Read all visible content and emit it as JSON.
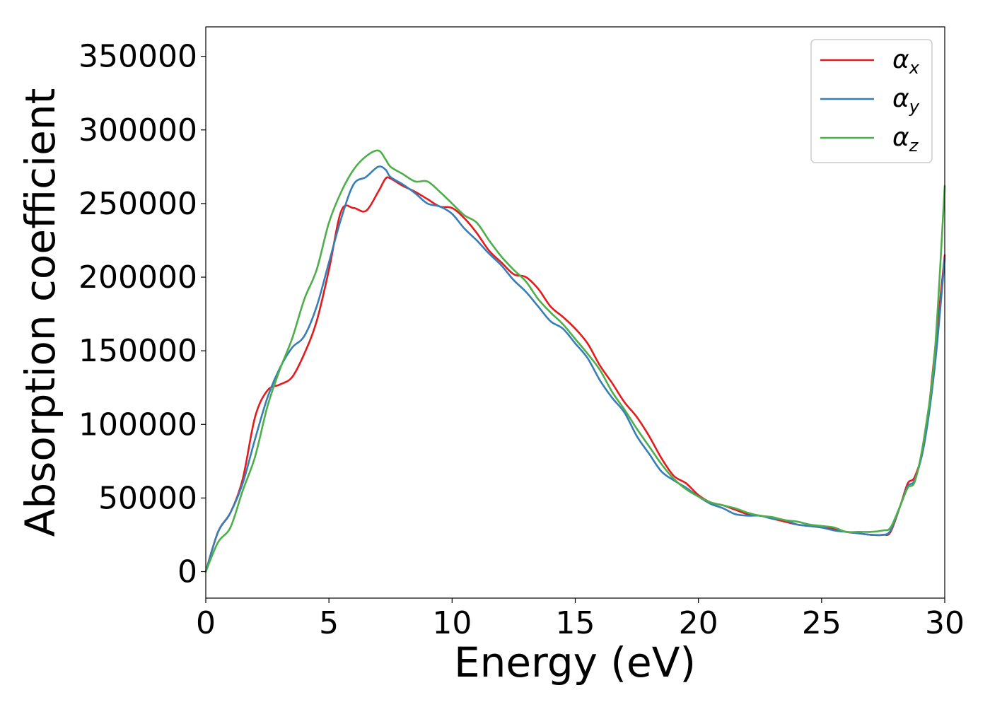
{
  "chart_data": {
    "type": "line",
    "title": "",
    "xlabel": "Energy (eV)",
    "ylabel": "Absorption coefficient",
    "xlim": [
      0,
      30
    ],
    "ylim": [
      -18000,
      370000
    ],
    "xticks": [
      0,
      5,
      10,
      15,
      20,
      25,
      30
    ],
    "yticks": [
      0,
      50000,
      100000,
      150000,
      200000,
      250000,
      300000,
      350000
    ],
    "grid": false,
    "legend_position": "top-right",
    "series": [
      {
        "name": "α_x",
        "symbol": "α",
        "subscript": "x",
        "color": "#e41a1c",
        "x": [
          0,
          0.5,
          1,
          1.5,
          2,
          2.5,
          3,
          3.5,
          4,
          4.5,
          5,
          5.5,
          6,
          6.5,
          7,
          7.3,
          7.5,
          8,
          8.5,
          9,
          9.5,
          10,
          10.5,
          11,
          11.5,
          12,
          12.5,
          13,
          13.5,
          14,
          14.5,
          15,
          15.5,
          16,
          16.5,
          17,
          17.5,
          18,
          18.5,
          19,
          19.5,
          20,
          20.5,
          21,
          21.5,
          22,
          22.5,
          23,
          23.5,
          24,
          24.5,
          25,
          25.5,
          26,
          26.5,
          27,
          27.5,
          27.8,
          28.2,
          28.5,
          28.8,
          29.2,
          29.6,
          30
        ],
        "y": [
          0,
          27000,
          40000,
          63000,
          105000,
          123000,
          127000,
          132000,
          148000,
          170000,
          205000,
          245000,
          247000,
          245000,
          258000,
          267000,
          267000,
          262000,
          258000,
          253000,
          248000,
          247000,
          240000,
          230000,
          218000,
          210000,
          202000,
          200000,
          192000,
          180000,
          173000,
          165000,
          155000,
          140000,
          128000,
          115000,
          105000,
          92000,
          77000,
          65000,
          60000,
          52000,
          47000,
          45000,
          42000,
          39000,
          38000,
          36000,
          34000,
          32000,
          31000,
          30000,
          29000,
          27000,
          26000,
          25000,
          25000,
          27000,
          45000,
          60000,
          65000,
          90000,
          150000,
          215000
        ]
      },
      {
        "name": "α_y",
        "symbol": "α",
        "subscript": "y",
        "color": "#377eb8",
        "x": [
          0,
          0.5,
          1,
          1.5,
          2,
          2.5,
          3,
          3.5,
          4,
          4.5,
          5,
          5.5,
          6,
          6.5,
          7,
          7.3,
          7.5,
          8,
          8.5,
          9,
          9.5,
          10,
          10.5,
          11,
          11.5,
          12,
          12.5,
          13,
          13.5,
          14,
          14.5,
          15,
          15.5,
          16,
          16.5,
          17,
          17.5,
          18,
          18.5,
          19,
          19.5,
          20,
          20.5,
          21,
          21.5,
          22,
          22.5,
          23,
          23.5,
          24,
          24.5,
          25,
          25.5,
          26,
          26.5,
          27,
          27.5,
          27.8,
          28.2,
          28.5,
          28.8,
          29.2,
          29.6,
          30
        ],
        "y": [
          0,
          27000,
          40000,
          60000,
          90000,
          118000,
          138000,
          152000,
          160000,
          180000,
          210000,
          240000,
          263000,
          268000,
          275000,
          273000,
          268000,
          263000,
          257000,
          250000,
          248000,
          243000,
          233000,
          225000,
          216000,
          208000,
          198000,
          190000,
          180000,
          170000,
          165000,
          155000,
          145000,
          130000,
          118000,
          108000,
          92000,
          80000,
          68000,
          62000,
          57000,
          51000,
          46000,
          43000,
          39000,
          38000,
          38000,
          36000,
          35000,
          32000,
          31000,
          30000,
          28000,
          27000,
          26000,
          25000,
          25000,
          28000,
          45000,
          58000,
          63000,
          90000,
          140000,
          213000
        ]
      },
      {
        "name": "α_z",
        "symbol": "α",
        "subscript": "z",
        "color": "#4daf4a",
        "x": [
          0,
          0.5,
          1,
          1.5,
          2,
          2.5,
          3,
          3.5,
          4,
          4.5,
          5,
          5.5,
          6,
          6.5,
          7,
          7.3,
          7.5,
          8,
          8.5,
          9,
          9.5,
          10,
          10.5,
          11,
          11.5,
          12,
          12.5,
          13,
          13.5,
          14,
          14.5,
          15,
          15.5,
          16,
          16.5,
          17,
          17.5,
          18,
          18.5,
          19,
          19.5,
          20,
          20.5,
          21,
          21.5,
          22,
          22.5,
          23,
          23.5,
          24,
          24.5,
          25,
          25.5,
          26,
          26.5,
          27,
          27.5,
          27.8,
          28.2,
          28.5,
          28.8,
          29.2,
          29.6,
          30
        ],
        "y": [
          0,
          20000,
          30000,
          55000,
          78000,
          112000,
          137000,
          158000,
          185000,
          205000,
          237000,
          258000,
          273000,
          282000,
          286000,
          280000,
          275000,
          270000,
          265000,
          265000,
          258000,
          250000,
          242000,
          237000,
          225000,
          214000,
          205000,
          197000,
          185000,
          176000,
          168000,
          158000,
          148000,
          137000,
          122000,
          110000,
          97000,
          85000,
          73000,
          63000,
          56000,
          51000,
          47000,
          45000,
          43000,
          40000,
          38000,
          37000,
          35000,
          34000,
          32000,
          31000,
          30000,
          27000,
          27000,
          27000,
          28000,
          30000,
          45000,
          57000,
          62000,
          95000,
          150000,
          262000
        ]
      }
    ]
  }
}
